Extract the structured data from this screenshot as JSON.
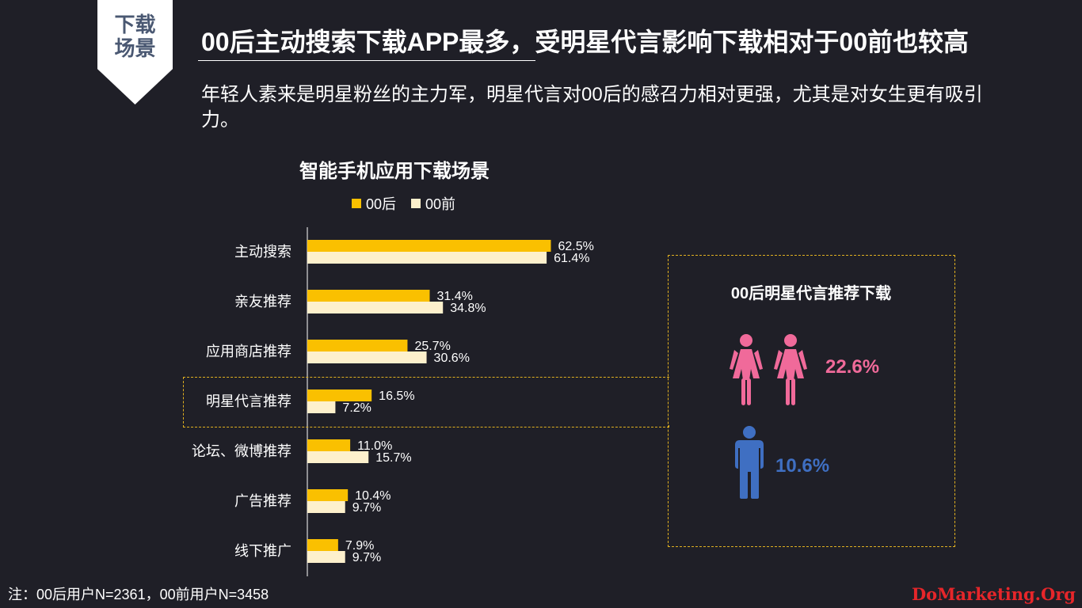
{
  "tag": {
    "line1": "下载",
    "line2": "场景"
  },
  "title": "00后主动搜索下载APP最多，受明星代言影响下载相对于00前也较高",
  "subtitle": "年轻人素来是明星粉丝的主力军，明星代言对00后的感召力相对更强，尤其是对女生更有吸引力。",
  "chart_data": {
    "type": "bar",
    "orientation": "horizontal",
    "title": "智能手机应用下载场景",
    "categories": [
      "主动搜索",
      "亲友推荐",
      "应用商店推荐",
      "明星代言推荐",
      "论坛、微博推荐",
      "广告推荐",
      "线下推广"
    ],
    "series": [
      {
        "name": "00后",
        "values": [
          62.5,
          31.4,
          25.7,
          16.5,
          11.0,
          10.4,
          7.9
        ],
        "labels": [
          "62.5%",
          "31.4%",
          "25.7%",
          "16.5%",
          "11.0%",
          "10.4%",
          "7.9%"
        ],
        "color": "#fac000"
      },
      {
        "name": "00前",
        "values": [
          61.4,
          34.8,
          30.6,
          7.2,
          15.7,
          9.7,
          9.7
        ],
        "labels": [
          "61.4%",
          "34.8%",
          "30.6%",
          "7.2%",
          "15.7%",
          "9.7%",
          "9.7%"
        ],
        "color": "#fdf0cc"
      }
    ],
    "legend_position": "top",
    "highlight_category": "明星代言推荐",
    "grid": false
  },
  "panel": {
    "title": "00后明星代言推荐下载",
    "female_pct": "22.6%",
    "male_pct": "10.6%",
    "female_color": "#f06a9a",
    "male_color": "#3f6fc2",
    "female_icon": "female-person-icon",
    "male_icon": "male-person-icon"
  },
  "note": "注：00后用户N=2361，00前用户N=3458",
  "watermark": "DoMarketing.Org"
}
